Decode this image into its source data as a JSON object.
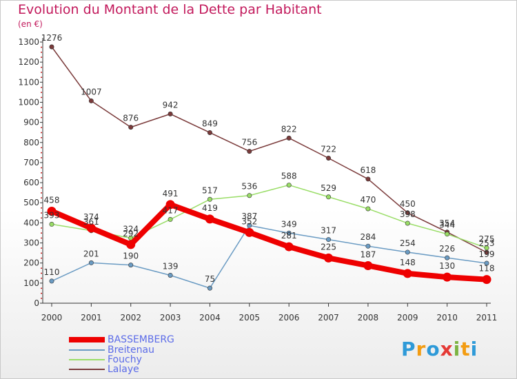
{
  "title": "Evolution du Montant de la Dette par Habitant",
  "subtitle": "(en €)",
  "logo": "Proxiti",
  "chart_data": {
    "type": "line",
    "x": [
      "2000",
      "2001",
      "2002",
      "2003",
      "2004",
      "2005",
      "2006",
      "2007",
      "2008",
      "2009",
      "2010",
      "2011"
    ],
    "ylim": [
      0,
      1300
    ],
    "yticks": [
      0,
      100,
      200,
      300,
      400,
      500,
      600,
      700,
      800,
      900,
      1000,
      1100,
      1200,
      1300
    ],
    "grid": false,
    "legend_position": "bottom-left",
    "series": [
      {
        "name": "BASSEMBERG",
        "color": "#ee0000",
        "width": 8,
        "values": [
          458,
          374,
          292,
          491,
          419,
          352,
          281,
          225,
          187,
          148,
          130,
          118
        ]
      },
      {
        "name": "Breitenau",
        "color": "#6a9bc3",
        "width": 1.5,
        "values": [
          110,
          201,
          190,
          139,
          75,
          387,
          349,
          317,
          284,
          254,
          226,
          199
        ]
      },
      {
        "name": "Fouchy",
        "color": "#99dd66",
        "width": 1.5,
        "values": [
          393,
          361,
          324,
          417,
          517,
          536,
          588,
          529,
          470,
          398,
          344,
          275
        ]
      },
      {
        "name": "Lalaye",
        "color": "#7a3a3a",
        "width": 1.5,
        "values": [
          1276,
          1007,
          876,
          942,
          849,
          756,
          822,
          722,
          618,
          450,
          354,
          253
        ]
      }
    ]
  }
}
